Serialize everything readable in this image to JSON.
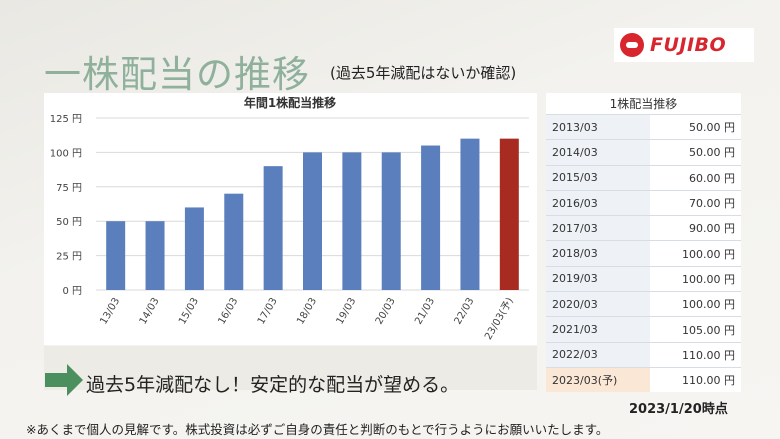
{
  "title": "一株配当の推移",
  "subtitle": "(過去5年減配はないか確認)",
  "logo": {
    "text": "FUJIBO",
    "icon": "fujibo-logo-icon"
  },
  "chart_data": {
    "type": "bar",
    "title": "年間1株配当推移",
    "categories": [
      "13/03",
      "14/03",
      "15/03",
      "16/03",
      "17/03",
      "18/03",
      "19/03",
      "20/03",
      "21/03",
      "22/03",
      "23/03(予)"
    ],
    "values": [
      50,
      50,
      60,
      70,
      90,
      100,
      100,
      100,
      105,
      110,
      110
    ],
    "bar_colors": [
      "#5b7fbd",
      "#5b7fbd",
      "#5b7fbd",
      "#5b7fbd",
      "#5b7fbd",
      "#5b7fbd",
      "#5b7fbd",
      "#5b7fbd",
      "#5b7fbd",
      "#5b7fbd",
      "#a82b22"
    ],
    "yticks": [
      "0 円",
      "25 円",
      "50 円",
      "75 円",
      "100 円",
      "125 円"
    ],
    "ylim": [
      0,
      125
    ],
    "grid": true,
    "xlabel": "",
    "ylabel": ""
  },
  "table": {
    "title": "1株配当推移",
    "rows": [
      {
        "period": "2013/03",
        "value": "50.00 円"
      },
      {
        "period": "2014/03",
        "value": "50.00 円"
      },
      {
        "period": "2015/03",
        "value": "60.00 円"
      },
      {
        "period": "2016/03",
        "value": "70.00 円"
      },
      {
        "period": "2017/03",
        "value": "90.00 円"
      },
      {
        "period": "2018/03",
        "value": "100.00 円"
      },
      {
        "period": "2019/03",
        "value": "100.00 円"
      },
      {
        "period": "2020/03",
        "value": "100.00 円"
      },
      {
        "period": "2021/03",
        "value": "105.00 円"
      },
      {
        "period": "2022/03",
        "value": "110.00 円"
      },
      {
        "period": "2023/03(予)",
        "value": "110.00 円"
      }
    ]
  },
  "banner": {
    "text": "過去5年減配なし！安定的な配当が望める。",
    "icon": "right-arrow-icon",
    "icon_color": "#4c8f5e"
  },
  "date_note": "2023/1/20時点",
  "disclaimer": "※あくまで個人の見解です。株式投資は必ずご自身の責任と判断のもとで行うようにお願いいたします。"
}
